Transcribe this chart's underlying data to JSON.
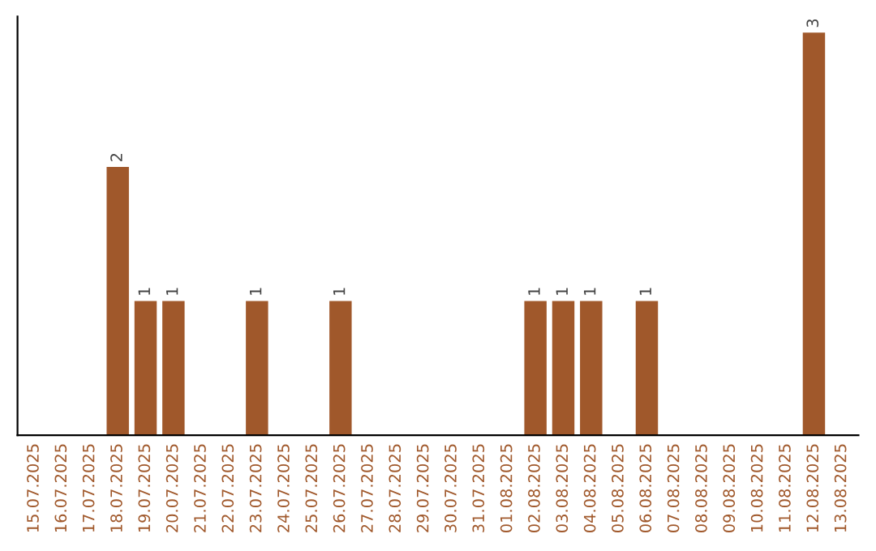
{
  "chart_data": {
    "type": "bar",
    "categories": [
      "15.07.2025",
      "16.07.2025",
      "17.07.2025",
      "18.07.2025",
      "19.07.2025",
      "20.07.2025",
      "21.07.2025",
      "22.07.2025",
      "23.07.2025",
      "24.07.2025",
      "25.07.2025",
      "26.07.2025",
      "27.07.2025",
      "28.07.2025",
      "29.07.2025",
      "30.07.2025",
      "31.07.2025",
      "01.08.2025",
      "02.08.2025",
      "03.08.2025",
      "04.08.2025",
      "05.08.2025",
      "06.08.2025",
      "07.08.2025",
      "08.08.2025",
      "09.08.2025",
      "10.08.2025",
      "11.08.2025",
      "12.08.2025",
      "13.08.2025"
    ],
    "values": [
      0,
      0,
      0,
      2,
      1,
      1,
      0,
      0,
      1,
      0,
      0,
      1,
      0,
      0,
      0,
      0,
      0,
      0,
      1,
      1,
      1,
      0,
      1,
      0,
      0,
      0,
      0,
      0,
      3,
      0
    ],
    "value_labels": [
      null,
      null,
      null,
      "2",
      "1",
      "1",
      null,
      null,
      "1",
      null,
      null,
      "1",
      null,
      null,
      null,
      null,
      null,
      null,
      "1",
      "1",
      "1",
      null,
      "1",
      null,
      null,
      null,
      null,
      null,
      "3",
      null
    ],
    "color": "#a0582b",
    "ylim": [
      0,
      3.12
    ],
    "tick_labels": "x",
    "grid": false
  }
}
